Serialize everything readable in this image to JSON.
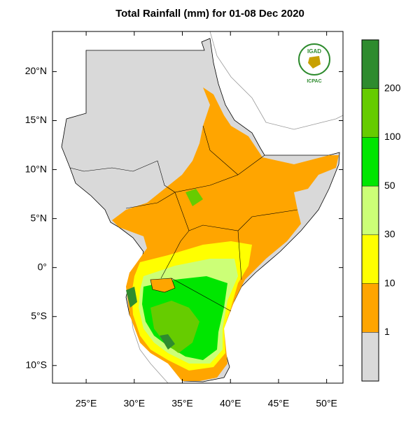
{
  "map": {
    "title": "Total Rainfall (mm) for 01-08 Dec 2020",
    "xlim": [
      21.5,
      51.7
    ],
    "ylim": [
      -11.8,
      24.1
    ],
    "xticks": [
      {
        "value": 25,
        "label": "25°E"
      },
      {
        "value": 30,
        "label": "30°E"
      },
      {
        "value": 35,
        "label": "35°E"
      },
      {
        "value": 40,
        "label": "40°E"
      },
      {
        "value": 45,
        "label": "45°E"
      },
      {
        "value": 50,
        "label": "50°E"
      }
    ],
    "yticks": [
      {
        "value": 20,
        "label": "20°N"
      },
      {
        "value": 15,
        "label": "15°N"
      },
      {
        "value": 10,
        "label": "10°N"
      },
      {
        "value": 5,
        "label": "5°N"
      },
      {
        "value": 0,
        "label": "0°"
      },
      {
        "value": -5,
        "label": "5°S"
      },
      {
        "value": -10,
        "label": "10°S"
      }
    ],
    "colorbar": {
      "levels": [
        1,
        10,
        30,
        50,
        100,
        200
      ],
      "colors": [
        "#d9d9d9",
        "#ffa500",
        "#ffff00",
        "#ccff77",
        "#00e600",
        "#66cc00",
        "#2e8b2e"
      ]
    },
    "logo": {
      "name": "IGAD",
      "org": "ICPAC"
    }
  }
}
